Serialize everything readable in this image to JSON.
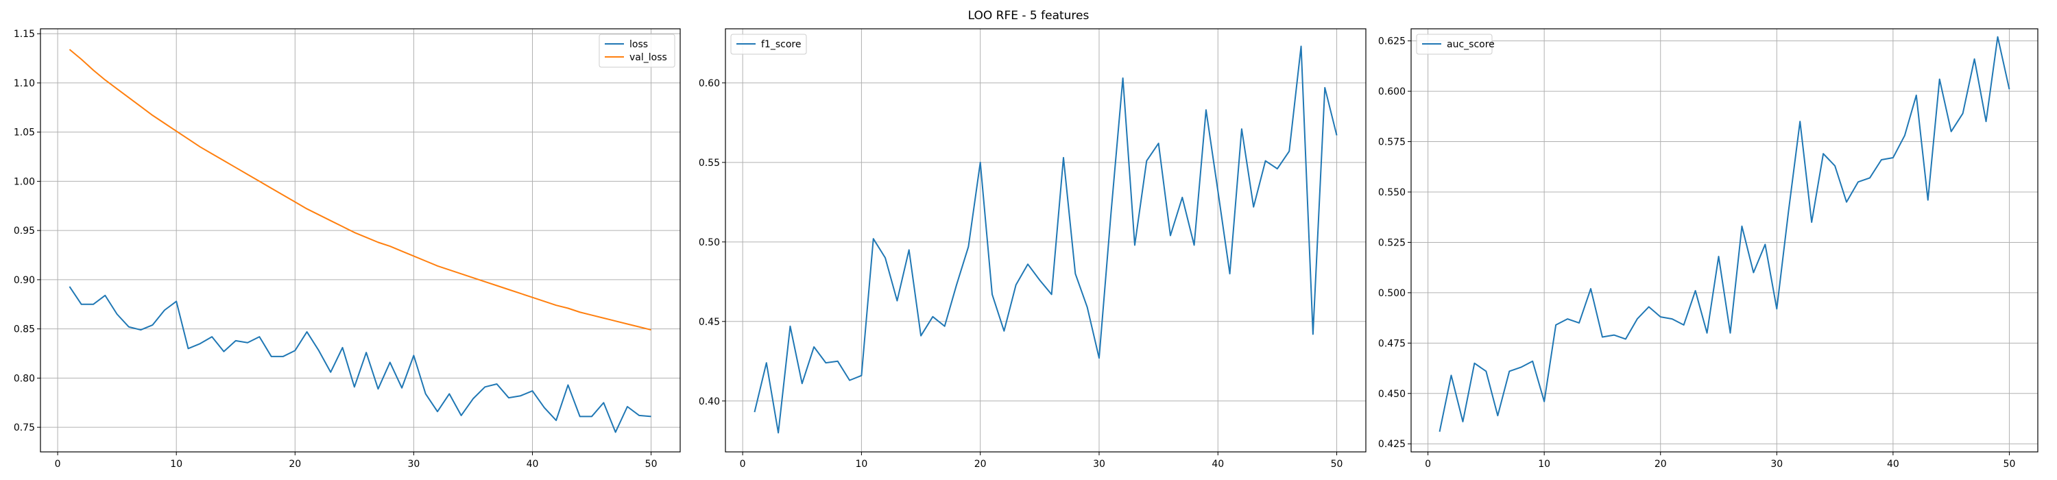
{
  "figure": {
    "suptitle": "LOO RFE - 5 features"
  },
  "colors": {
    "series1": "#1f77b4",
    "series2": "#ff7f0e",
    "grid": "#b0b0b0"
  },
  "chart_data": [
    {
      "type": "line",
      "grid": true,
      "legend_placement": "upper right",
      "xlim": [
        -1.45,
        52.45
      ],
      "ylim": [
        0.725,
        1.155
      ],
      "xticks": [
        0,
        10,
        20,
        30,
        40,
        50
      ],
      "xtick_labels": [
        "0",
        "10",
        "20",
        "30",
        "40",
        "50"
      ],
      "yticks": [
        0.75,
        0.8,
        0.85,
        0.9,
        0.95,
        1.0,
        1.05,
        1.1,
        1.15
      ],
      "ytick_labels": [
        "0.75",
        "0.80",
        "0.85",
        "0.90",
        "0.95",
        "1.00",
        "1.05",
        "1.10",
        "1.15"
      ],
      "x": [
        1,
        2,
        3,
        4,
        5,
        6,
        7,
        8,
        9,
        10,
        11,
        12,
        13,
        14,
        15,
        16,
        17,
        18,
        19,
        20,
        21,
        22,
        23,
        24,
        25,
        26,
        27,
        28,
        29,
        30,
        31,
        32,
        33,
        34,
        35,
        36,
        37,
        38,
        39,
        40,
        41,
        42,
        43,
        44,
        45,
        46,
        47,
        48,
        49,
        50
      ],
      "series": [
        {
          "name": "loss",
          "values": [
            0.893,
            0.875,
            0.875,
            0.884,
            0.865,
            0.852,
            0.849,
            0.854,
            0.869,
            0.878,
            0.83,
            0.835,
            0.842,
            0.827,
            0.838,
            0.836,
            0.842,
            0.822,
            0.822,
            0.828,
            0.847,
            0.828,
            0.806,
            0.831,
            0.791,
            0.826,
            0.789,
            0.816,
            0.79,
            0.823,
            0.784,
            0.766,
            0.784,
            0.762,
            0.779,
            0.791,
            0.794,
            0.78,
            0.782,
            0.787,
            0.77,
            0.757,
            0.793,
            0.761,
            0.761,
            0.775,
            0.745,
            0.771,
            0.762,
            0.761
          ]
        },
        {
          "name": "val_loss",
          "values": [
            1.134,
            1.124,
            1.113,
            1.103,
            1.094,
            1.085,
            1.076,
            1.067,
            1.059,
            1.051,
            1.043,
            1.035,
            1.028,
            1.021,
            1.014,
            1.007,
            1.0,
            0.993,
            0.986,
            0.979,
            0.972,
            0.966,
            0.96,
            0.954,
            0.948,
            0.943,
            0.938,
            0.934,
            0.929,
            0.924,
            0.919,
            0.914,
            0.91,
            0.906,
            0.902,
            0.898,
            0.894,
            0.89,
            0.886,
            0.882,
            0.878,
            0.874,
            0.871,
            0.867,
            0.864,
            0.861,
            0.858,
            0.855,
            0.852,
            0.849
          ]
        }
      ]
    },
    {
      "type": "line",
      "grid": true,
      "legend_placement": "upper left",
      "xlim": [
        -1.45,
        52.45
      ],
      "ylim": [
        0.368,
        0.634
      ],
      "xticks": [
        0,
        10,
        20,
        30,
        40,
        50
      ],
      "xtick_labels": [
        "0",
        "10",
        "20",
        "30",
        "40",
        "50"
      ],
      "yticks": [
        0.4,
        0.45,
        0.5,
        0.55,
        0.6
      ],
      "ytick_labels": [
        "0.40",
        "0.45",
        "0.50",
        "0.55",
        "0.60"
      ],
      "x": [
        1,
        2,
        3,
        4,
        5,
        6,
        7,
        8,
        9,
        10,
        11,
        12,
        13,
        14,
        15,
        16,
        17,
        18,
        19,
        20,
        21,
        22,
        23,
        24,
        25,
        26,
        27,
        28,
        29,
        30,
        31,
        32,
        33,
        34,
        35,
        36,
        37,
        38,
        39,
        40,
        41,
        42,
        43,
        44,
        45,
        46,
        47,
        48,
        49,
        50
      ],
      "series": [
        {
          "name": "f1_score",
          "values": [
            0.393,
            0.424,
            0.38,
            0.447,
            0.411,
            0.434,
            0.424,
            0.425,
            0.413,
            0.416,
            0.502,
            0.49,
            0.463,
            0.495,
            0.441,
            0.453,
            0.447,
            0.473,
            0.497,
            0.55,
            0.467,
            0.444,
            0.473,
            0.486,
            0.476,
            0.467,
            0.553,
            0.48,
            0.459,
            0.427,
            0.518,
            0.603,
            0.498,
            0.551,
            0.562,
            0.504,
            0.528,
            0.498,
            0.583,
            0.532,
            0.48,
            0.571,
            0.522,
            0.551,
            0.546,
            0.557,
            0.623,
            0.442,
            0.597,
            0.567
          ]
        }
      ]
    },
    {
      "type": "line",
      "grid": true,
      "legend_placement": "upper left",
      "xlim": [
        -1.45,
        52.45
      ],
      "ylim": [
        0.421,
        0.631
      ],
      "xticks": [
        0,
        10,
        20,
        30,
        40,
        50
      ],
      "xtick_labels": [
        "0",
        "10",
        "20",
        "30",
        "40",
        "50"
      ],
      "yticks": [
        0.425,
        0.45,
        0.475,
        0.5,
        0.525,
        0.55,
        0.575,
        0.6,
        0.625
      ],
      "ytick_labels": [
        "0.425",
        "0.450",
        "0.475",
        "0.500",
        "0.525",
        "0.550",
        "0.575",
        "0.600",
        "0.625"
      ],
      "x": [
        1,
        2,
        3,
        4,
        5,
        6,
        7,
        8,
        9,
        10,
        11,
        12,
        13,
        14,
        15,
        16,
        17,
        18,
        19,
        20,
        21,
        22,
        23,
        24,
        25,
        26,
        27,
        28,
        29,
        30,
        31,
        32,
        33,
        34,
        35,
        36,
        37,
        38,
        39,
        40,
        41,
        42,
        43,
        44,
        45,
        46,
        47,
        48,
        49,
        50
      ],
      "series": [
        {
          "name": "auc_score",
          "values": [
            0.431,
            0.459,
            0.436,
            0.465,
            0.461,
            0.439,
            0.461,
            0.463,
            0.466,
            0.446,
            0.484,
            0.487,
            0.485,
            0.502,
            0.478,
            0.479,
            0.477,
            0.487,
            0.493,
            0.488,
            0.487,
            0.484,
            0.501,
            0.48,
            0.518,
            0.48,
            0.533,
            0.51,
            0.524,
            0.492,
            0.54,
            0.585,
            0.535,
            0.569,
            0.563,
            0.545,
            0.555,
            0.557,
            0.566,
            0.567,
            0.578,
            0.598,
            0.546,
            0.606,
            0.58,
            0.589,
            0.616,
            0.585,
            0.627,
            0.601
          ]
        }
      ]
    }
  ]
}
